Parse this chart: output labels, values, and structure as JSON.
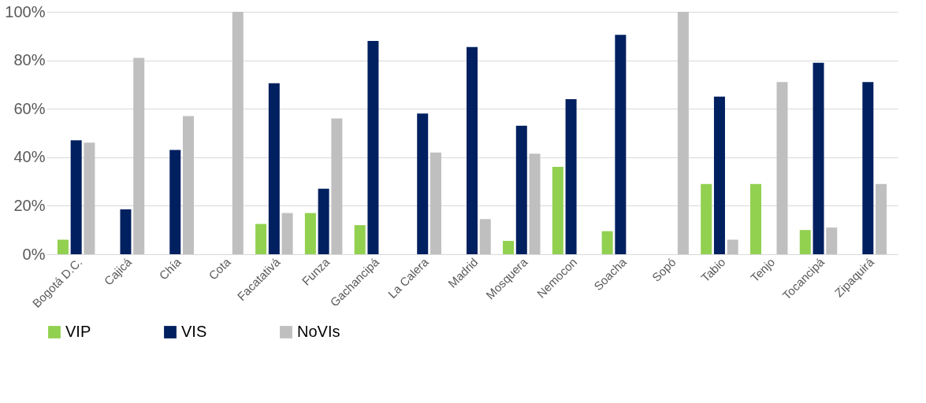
{
  "chart_data": {
    "type": "bar",
    "categories": [
      "Bogotá D.C.",
      "Cajicá",
      "Chía",
      "Cota",
      "Facatativá",
      "Funza",
      "Gachancipá",
      "La Calera",
      "Madrid",
      "Mosquera",
      "Nemocon",
      "Soacha",
      "Sopó",
      "Tabio",
      "Tenjo",
      "Tocancipá",
      "Zipaquirá"
    ],
    "series": [
      {
        "name": "VIP",
        "color": "#92d050",
        "values": [
          6,
          0,
          0,
          0,
          12.5,
          17,
          12,
          0,
          0,
          5.5,
          36,
          9.5,
          0,
          29,
          29,
          10,
          0
        ]
      },
      {
        "name": "VIS",
        "color": "#002060",
        "values": [
          47,
          18.5,
          43,
          0,
          70.5,
          27,
          88,
          58,
          85.5,
          53,
          64,
          90.5,
          0,
          65,
          0,
          79,
          71
        ]
      },
      {
        "name": "NoVIs",
        "color": "#bfbfbf",
        "values": [
          46,
          81,
          57,
          100,
          17,
          56,
          0,
          42,
          14.5,
          41.5,
          0,
          0,
          100,
          6,
          71,
          11,
          29
        ]
      }
    ],
    "ylim": [
      0,
      100
    ],
    "yticks": [
      {
        "value": 0,
        "label": "0%"
      },
      {
        "value": 20,
        "label": "20%"
      },
      {
        "value": 40,
        "label": "40%"
      },
      {
        "value": 60,
        "label": "60%"
      },
      {
        "value": 80,
        "label": "80%"
      },
      {
        "value": 100,
        "label": "100%"
      }
    ],
    "grid": "y",
    "legend": "bottom"
  }
}
